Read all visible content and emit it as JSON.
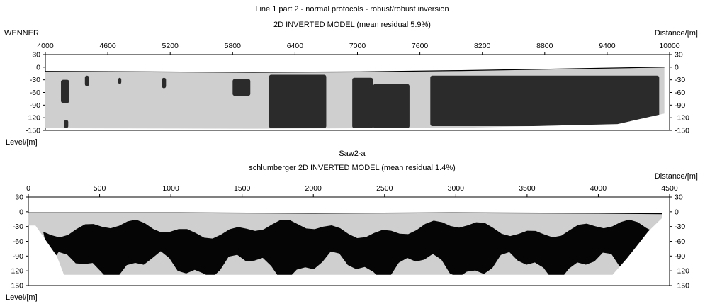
{
  "figure": {
    "title": "Line 1 part 2 - normal protocols - robust/robust inversion"
  },
  "chart_data": [
    {
      "type": "heatmap",
      "left_label": "WENNER",
      "title": "2D INVERTED MODEL (mean residual 5.9%)",
      "xlabel": "Distance/[m]",
      "ylabel": "Level/[m]",
      "x_ticks": [
        4000,
        4600,
        5200,
        5800,
        6400,
        7000,
        7600,
        8200,
        8800,
        9400,
        10000
      ],
      "y_ticks": [
        30,
        0,
        -30,
        -60,
        -90,
        -120,
        -150
      ],
      "xlim": [
        4000,
        10000
      ],
      "ylim": [
        -150,
        30
      ],
      "surface": [
        [
          4000,
          -10
        ],
        [
          5000,
          -11
        ],
        [
          6000,
          -12
        ],
        [
          7000,
          -11
        ],
        [
          8000,
          -8
        ],
        [
          9000,
          -4
        ],
        [
          9700,
          -1
        ],
        [
          9950,
          0
        ]
      ],
      "base": [
        [
          4000,
          -145
        ],
        [
          6000,
          -146
        ],
        [
          8000,
          -144
        ],
        [
          9500,
          -135
        ],
        [
          9950,
          -110
        ]
      ],
      "colors": {
        "light": "#cfcfcf",
        "mid": "#8a8a8a",
        "dark": "#2b2b2b"
      },
      "dark_bodies": [
        {
          "x": [
            4150,
            4230
          ],
          "y": [
            -30,
            -85
          ]
        },
        {
          "x": [
            4380,
            4420
          ],
          "y": [
            -20,
            -45
          ]
        },
        {
          "x": [
            4700,
            4730
          ],
          "y": [
            -25,
            -40
          ]
        },
        {
          "x": [
            5120,
            5160
          ],
          "y": [
            -25,
            -50
          ]
        },
        {
          "x": [
            5800,
            5970
          ],
          "y": [
            -28,
            -68
          ]
        },
        {
          "x": [
            6150,
            6700
          ],
          "y": [
            -18,
            -145
          ]
        },
        {
          "x": [
            6950,
            7150
          ],
          "y": [
            -25,
            -145
          ]
        },
        {
          "x": [
            7150,
            7500
          ],
          "y": [
            -40,
            -145
          ]
        },
        {
          "x": [
            7700,
            9900
          ],
          "y": [
            -20,
            -140
          ]
        },
        {
          "x": [
            4180,
            4220
          ],
          "y": [
            -125,
            -145
          ]
        }
      ]
    },
    {
      "type": "heatmap",
      "left_label": "",
      "subtitle_above": "Saw2-a",
      "title": "schlumberger 2D INVERTED MODEL (mean residual 1.4%)",
      "xlabel": "Distance/[m]",
      "ylabel": "Level/[m]",
      "x_ticks": [
        0,
        500,
        1000,
        1500,
        2000,
        2500,
        3000,
        3500,
        4000,
        4500
      ],
      "y_ticks": [
        30,
        0,
        -30,
        -60,
        -90,
        -120,
        -150
      ],
      "xlim": [
        0,
        4500
      ],
      "ylim": [
        -150,
        30
      ],
      "surface": [
        [
          0,
          -2
        ],
        [
          1000,
          -2
        ],
        [
          2000,
          -3
        ],
        [
          3000,
          -2
        ],
        [
          4000,
          -3
        ],
        [
          4450,
          -4
        ]
      ],
      "base": [
        [
          0,
          -28
        ],
        [
          50,
          -28
        ],
        [
          200,
          -90
        ],
        [
          250,
          -128
        ],
        [
          4100,
          -128
        ],
        [
          4200,
          -95
        ],
        [
          4350,
          -40
        ],
        [
          4450,
          -12
        ]
      ],
      "colors": {
        "light": "#cfcfcf",
        "dark": "#050505"
      },
      "dark_top_depth": -35,
      "dark_bottom_depth": -110
    }
  ]
}
